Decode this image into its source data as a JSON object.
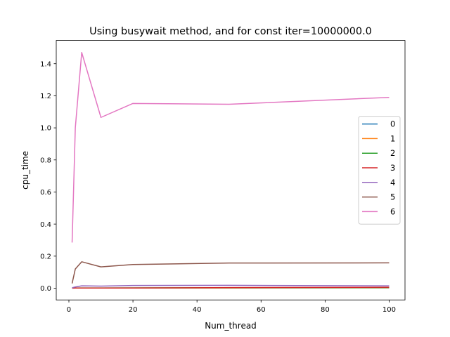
{
  "chart_data": {
    "type": "line",
    "title": "Using busywait method, and for const iter=10000000.0",
    "xlabel": "Num_thread",
    "ylabel": "cpu_time",
    "xlim": [
      -3.95,
      104.95
    ],
    "ylim": [
      -0.073,
      1.545
    ],
    "xticks": [
      0,
      20,
      40,
      60,
      80,
      100
    ],
    "yticks": [
      0.0,
      0.2,
      0.4,
      0.6,
      0.8,
      1.0,
      1.2,
      1.4
    ],
    "xtick_labels": [
      "0",
      "20",
      "40",
      "60",
      "80",
      "100"
    ],
    "ytick_labels": [
      "0.0",
      "0.2",
      "0.4",
      "0.6",
      "0.8",
      "1.0",
      "1.2",
      "1.4"
    ],
    "grid": false,
    "legend_position": "center-right",
    "x": [
      1,
      2,
      4,
      10,
      20,
      50,
      100
    ],
    "series": [
      {
        "name": "0",
        "color": "#1f77b4",
        "values": [
          0.0005,
          0.001,
          0.001,
          0.001,
          0.0015,
          0.002,
          0.003
        ]
      },
      {
        "name": "1",
        "color": "#ff7f0e",
        "values": [
          0.0005,
          0.001,
          0.001,
          0.001,
          0.0015,
          0.002,
          0.003
        ]
      },
      {
        "name": "2",
        "color": "#2ca02c",
        "values": [
          0.001,
          0.0015,
          0.0015,
          0.0015,
          0.002,
          0.003,
          0.004
        ]
      },
      {
        "name": "3",
        "color": "#d62728",
        "values": [
          0.001,
          0.001,
          0.001,
          0.001,
          0.001,
          0.004,
          0.006
        ]
      },
      {
        "name": "4",
        "color": "#9467bd",
        "values": [
          0.003,
          0.008,
          0.015,
          0.013,
          0.017,
          0.018,
          0.015
        ]
      },
      {
        "name": "5",
        "color": "#8c564b",
        "values": [
          0.03,
          0.12,
          0.165,
          0.133,
          0.148,
          0.157,
          0.158
        ]
      },
      {
        "name": "6",
        "color": "#e377c2",
        "values": [
          0.285,
          1.0,
          1.47,
          1.065,
          1.152,
          1.147,
          1.19
        ]
      }
    ]
  }
}
